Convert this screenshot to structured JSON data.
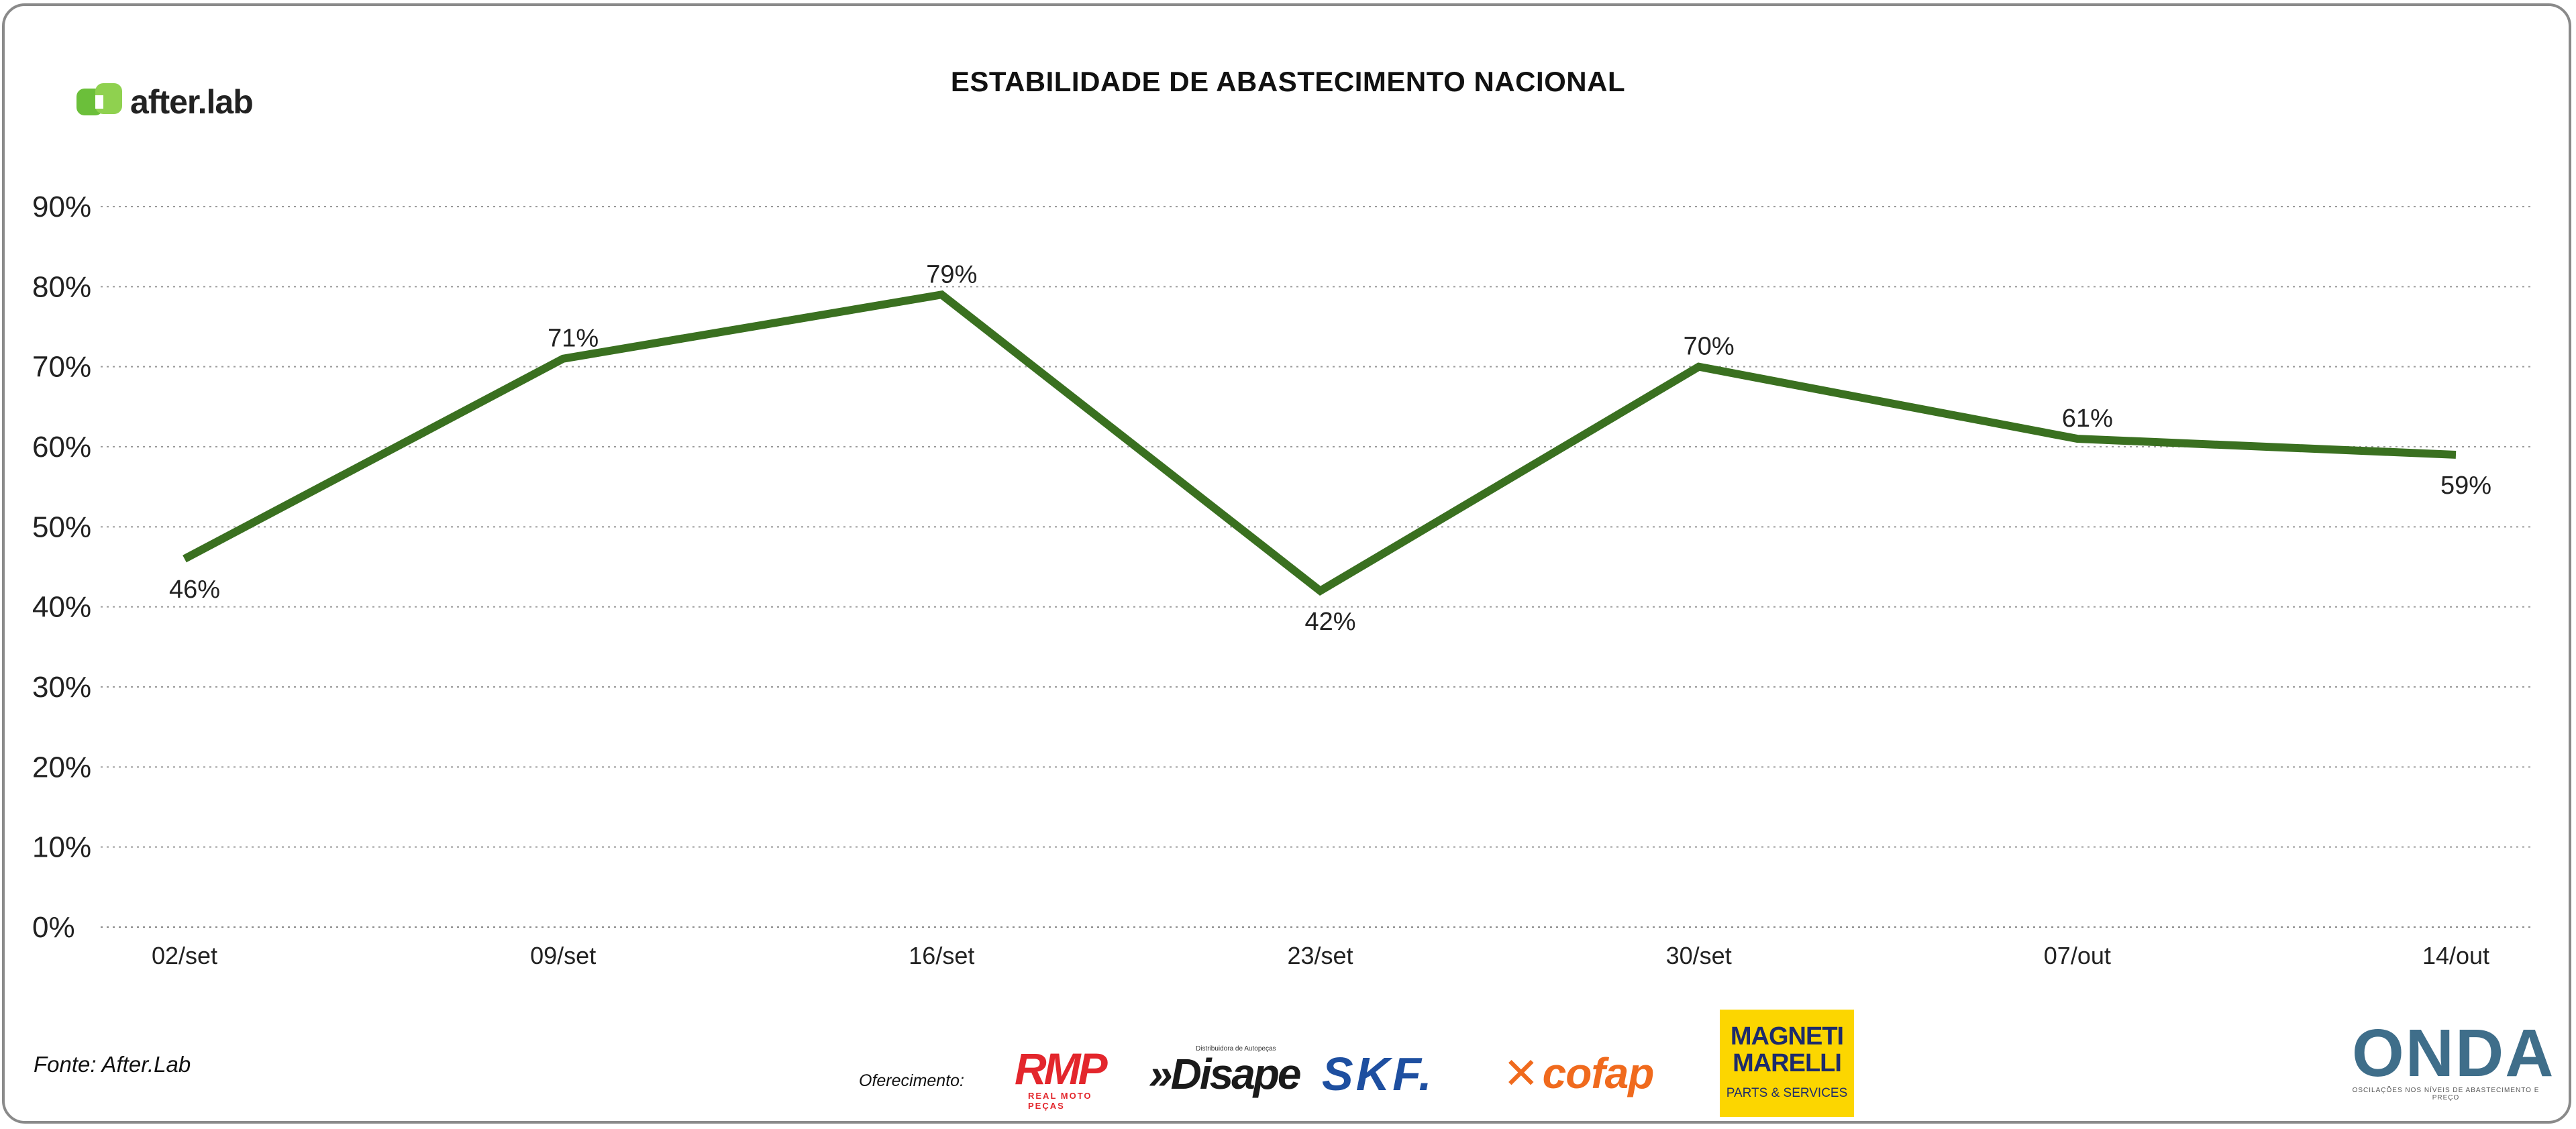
{
  "title": "ESTABILIDADE DE ABASTECIMENTO NACIONAL",
  "brand": {
    "name": "after.lab",
    "icon": "afterlab-logo-icon",
    "color": "#6bbf3a"
  },
  "chart_data": {
    "type": "line",
    "title": "ESTABILIDADE DE ABASTECIMENTO NACIONAL",
    "categories": [
      "02/set",
      "09/set",
      "16/set",
      "23/set",
      "30/set",
      "07/out",
      "14/out"
    ],
    "series": [
      {
        "values": [
          46,
          71,
          79,
          42,
          70,
          61,
          59
        ],
        "color": "#3a7020"
      }
    ],
    "data_labels": [
      "46%",
      "71%",
      "79%",
      "42%",
      "70%",
      "61%",
      "59%"
    ],
    "yticks": [
      "0%",
      "10%",
      "20%",
      "30%",
      "40%",
      "50%",
      "60%",
      "70%",
      "80%",
      "90%"
    ],
    "ylim": [
      0,
      90
    ],
    "grid": true,
    "xlabel": "",
    "ylabel": ""
  },
  "footer": {
    "source": "Fonte: After.Lab",
    "sponsored_label": "Oferecimento:",
    "sponsors": {
      "rmp": {
        "name": "RMP",
        "sub": "REAL MOTO PEÇAS"
      },
      "disape": {
        "name": "»Disape",
        "tag": "Distribuidora de Autopeças"
      },
      "skf": {
        "name": "SKF."
      },
      "cofap": {
        "name": "cofap"
      },
      "magneti": {
        "name": "MAGNETI MARELLI",
        "sub": "PARTS & SERVICES"
      },
      "onda": {
        "name": "ONDA",
        "sub": "OSCILAÇÕES NOS NÍVEIS DE ABASTECIMENTO E PREÇO"
      }
    }
  }
}
